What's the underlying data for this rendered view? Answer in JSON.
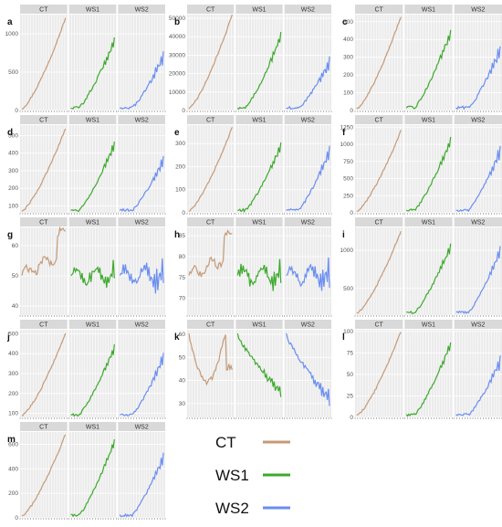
{
  "legend": {
    "items": [
      {
        "label": "CT",
        "color": "#c49a78"
      },
      {
        "label": "WS1",
        "color": "#3caa2c"
      },
      {
        "label": "WS2",
        "color": "#6a8ef0"
      }
    ]
  },
  "facet_labels": [
    "CT",
    "WS1",
    "WS2"
  ],
  "chart_data": [
    {
      "panel": "a",
      "type": "line",
      "facets": [
        "CT",
        "WS1",
        "WS2"
      ],
      "yticks": [
        0,
        500,
        1000
      ],
      "ylim": [
        0,
        1250
      ],
      "end_values": [
        1200,
        900,
        700
      ],
      "pattern": "growth"
    },
    {
      "panel": "b",
      "type": "line",
      "facets": [
        "CT",
        "WS1",
        "WS2"
      ],
      "yticks": [
        0,
        10000,
        20000,
        30000,
        40000,
        50000
      ],
      "ylim": [
        0,
        52000
      ],
      "end_values": [
        52000,
        40000,
        26000
      ],
      "pattern": "growth"
    },
    {
      "panel": "c",
      "type": "line",
      "facets": [
        "CT",
        "WS1",
        "WS2"
      ],
      "yticks": [
        0,
        100,
        200,
        300,
        400,
        500
      ],
      "ylim": [
        0,
        540
      ],
      "end_values": [
        530,
        440,
        340
      ],
      "pattern": "growth"
    },
    {
      "panel": "d",
      "type": "line",
      "facets": [
        "CT",
        "WS1",
        "WS2"
      ],
      "yticks": [
        100,
        200,
        300,
        400,
        500
      ],
      "ylim": [
        60,
        560
      ],
      "end_values": [
        540,
        450,
        360
      ],
      "pattern": "growth"
    },
    {
      "panel": "e",
      "type": "line",
      "facets": [
        "CT",
        "WS1",
        "WS2"
      ],
      "yticks": [
        0,
        100,
        200,
        300
      ],
      "ylim": [
        0,
        380
      ],
      "end_values": [
        370,
        290,
        270
      ],
      "pattern": "growth"
    },
    {
      "panel": "f",
      "type": "line",
      "facets": [
        "CT",
        "WS1",
        "WS2"
      ],
      "yticks": [
        0,
        250,
        500,
        750,
        1000,
        1250
      ],
      "ylim": [
        0,
        1280
      ],
      "end_values": [
        1200,
        1050,
        900
      ],
      "pattern": "growth"
    },
    {
      "panel": "g",
      "type": "line",
      "facets": [
        "CT",
        "WS1",
        "WS2"
      ],
      "yticks": [
        40,
        50,
        60
      ],
      "ylim": [
        37,
        66
      ],
      "end_values": [
        63,
        58,
        55
      ],
      "pattern": "noisy"
    },
    {
      "panel": "h",
      "type": "line",
      "facets": [
        "CT",
        "WS1",
        "WS2"
      ],
      "yticks": [
        70,
        75,
        80,
        85
      ],
      "ylim": [
        66,
        87
      ],
      "end_values": [
        84,
        78,
        79
      ],
      "pattern": "noisy"
    },
    {
      "panel": "i",
      "type": "line",
      "facets": [
        "CT",
        "WS1",
        "WS2"
      ],
      "yticks": [
        500,
        1000
      ],
      "ylim": [
        150,
        1300
      ],
      "end_values": [
        1250,
        1050,
        1000
      ],
      "pattern": "growth"
    },
    {
      "panel": "j",
      "type": "line",
      "facets": [
        "CT",
        "WS1",
        "WS2"
      ],
      "yticks": [
        100,
        200,
        300,
        400,
        500
      ],
      "ylim": [
        80,
        520
      ],
      "end_values": [
        500,
        430,
        380
      ],
      "pattern": "growth"
    },
    {
      "panel": "k",
      "type": "line",
      "facets": [
        "CT",
        "WS1",
        "WS2"
      ],
      "yticks": [
        30,
        40,
        50,
        60
      ],
      "ylim": [
        24,
        62
      ],
      "end_values": [
        52,
        35,
        32
      ],
      "pattern": "decline"
    },
    {
      "panel": "l",
      "type": "line",
      "facets": [
        "CT",
        "WS1",
        "WS2"
      ],
      "yticks": [
        0,
        25,
        50,
        75,
        100
      ],
      "ylim": [
        0,
        102
      ],
      "end_values": [
        100,
        85,
        65
      ],
      "pattern": "growth"
    },
    {
      "panel": "m",
      "type": "line",
      "facets": [
        "CT",
        "WS1",
        "WS2"
      ],
      "yticks": [
        0,
        200,
        400,
        600
      ],
      "ylim": [
        0,
        700
      ],
      "end_values": [
        680,
        620,
        500
      ],
      "pattern": "growth"
    }
  ]
}
